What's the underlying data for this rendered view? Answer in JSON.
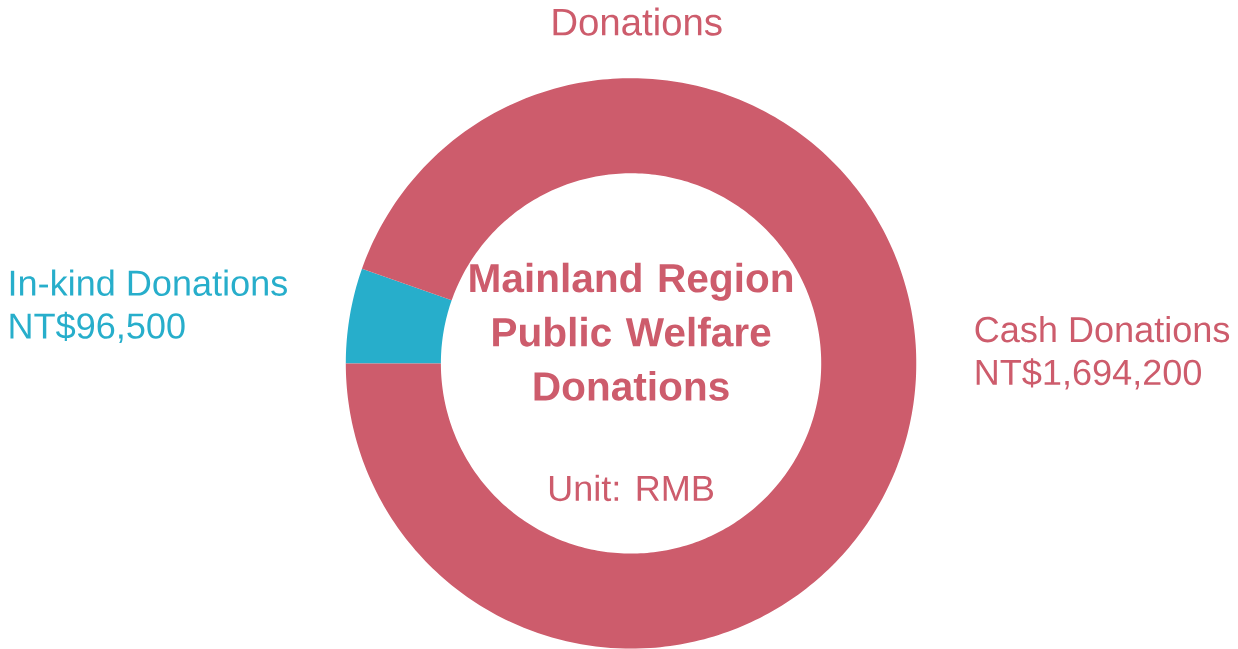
{
  "chart_data": {
    "type": "donut",
    "title": "Donations",
    "subtitle": "Mainland Region Public Welfare Donations",
    "annotations": [
      "Unit: RMB"
    ],
    "categories": [
      "In-kind Donations",
      "Cash Donations"
    ],
    "values": [
      96500,
      1694200
    ],
    "value_labels": [
      "NT$96,500",
      "NT$1,694,200"
    ],
    "colors": [
      "#27aecb",
      "#cd5c6c"
    ]
  }
}
